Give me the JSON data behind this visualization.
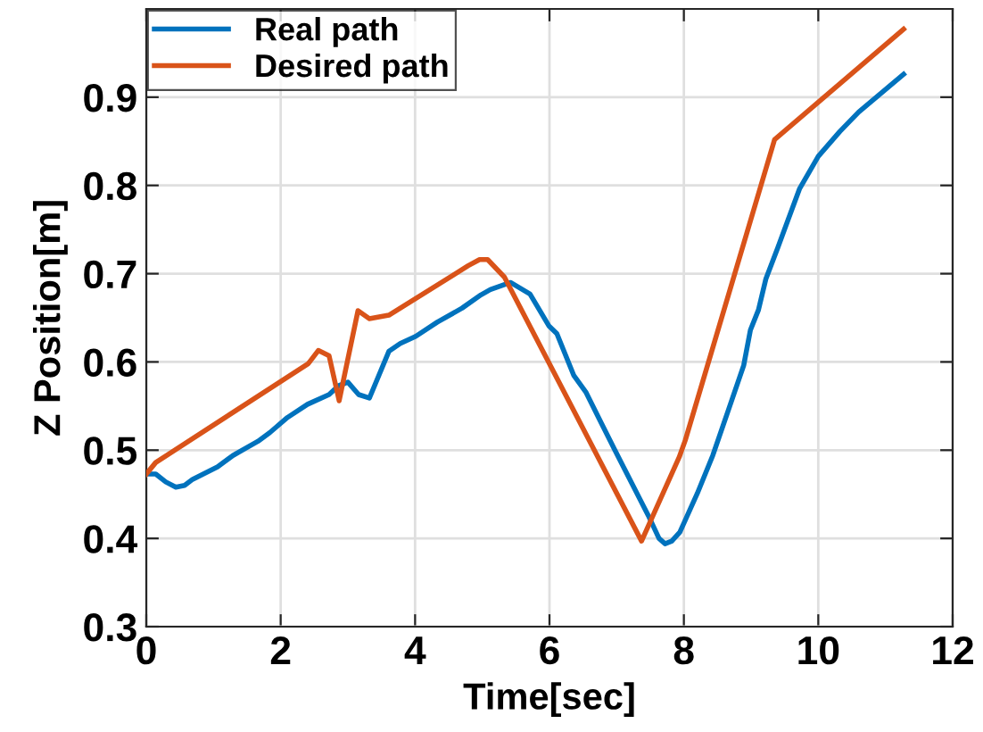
{
  "chart_data": {
    "type": "line",
    "xlabel": "Time[sec]",
    "ylabel": "Z Position[m]",
    "xlim": [
      0,
      12
    ],
    "xticks": [
      0,
      2,
      4,
      6,
      8,
      10,
      12
    ],
    "ylim": [
      0.3,
      1.0
    ],
    "yticks": [
      0.3,
      0.4,
      0.5,
      0.6,
      0.7,
      0.8,
      0.9
    ],
    "grid": true,
    "legend": "top left",
    "line_style": "solid",
    "marker": "none",
    "series": [
      {
        "name": "Real path",
        "color": "#0072bd",
        "x": [
          0,
          0.14,
          0.29,
          0.44,
          0.57,
          0.69,
          1.06,
          1.29,
          1.66,
          1.84,
          2.1,
          2.4,
          2.72,
          2.86,
          3.0,
          3.16,
          3.32,
          3.61,
          3.78,
          4.01,
          4.33,
          4.7,
          4.98,
          5.12,
          5.42,
          5.71,
          5.99,
          6.11,
          6.36,
          6.54,
          6.77,
          6.96,
          7.47,
          7.63,
          7.72,
          7.82,
          7.94,
          8.2,
          8.43,
          8.66,
          8.89,
          8.99,
          9.11,
          9.22,
          9.4,
          9.72,
          10.0,
          10.32,
          10.6,
          11.27
        ],
        "values": [
          0.473,
          0.473,
          0.464,
          0.458,
          0.46,
          0.467,
          0.481,
          0.494,
          0.51,
          0.52,
          0.537,
          0.552,
          0.563,
          0.573,
          0.577,
          0.563,
          0.559,
          0.612,
          0.621,
          0.629,
          0.645,
          0.661,
          0.676,
          0.682,
          0.69,
          0.677,
          0.641,
          0.632,
          0.585,
          0.566,
          0.531,
          0.502,
          0.426,
          0.4,
          0.394,
          0.397,
          0.407,
          0.451,
          0.494,
          0.545,
          0.596,
          0.636,
          0.659,
          0.694,
          0.73,
          0.796,
          0.833,
          0.861,
          0.883,
          0.926
        ]
      },
      {
        "name": "Desired path",
        "color": "#d95319",
        "x": [
          0,
          0.14,
          2.41,
          2.56,
          2.72,
          2.87,
          3.15,
          3.32,
          3.61,
          4.79,
          4.96,
          5.08,
          5.33,
          7.37,
          7.93,
          8.02,
          9.35,
          11.27
        ],
        "values": [
          0.473,
          0.486,
          0.598,
          0.613,
          0.607,
          0.556,
          0.658,
          0.649,
          0.653,
          0.709,
          0.716,
          0.716,
          0.696,
          0.397,
          0.492,
          0.511,
          0.852,
          0.977
        ]
      }
    ]
  }
}
